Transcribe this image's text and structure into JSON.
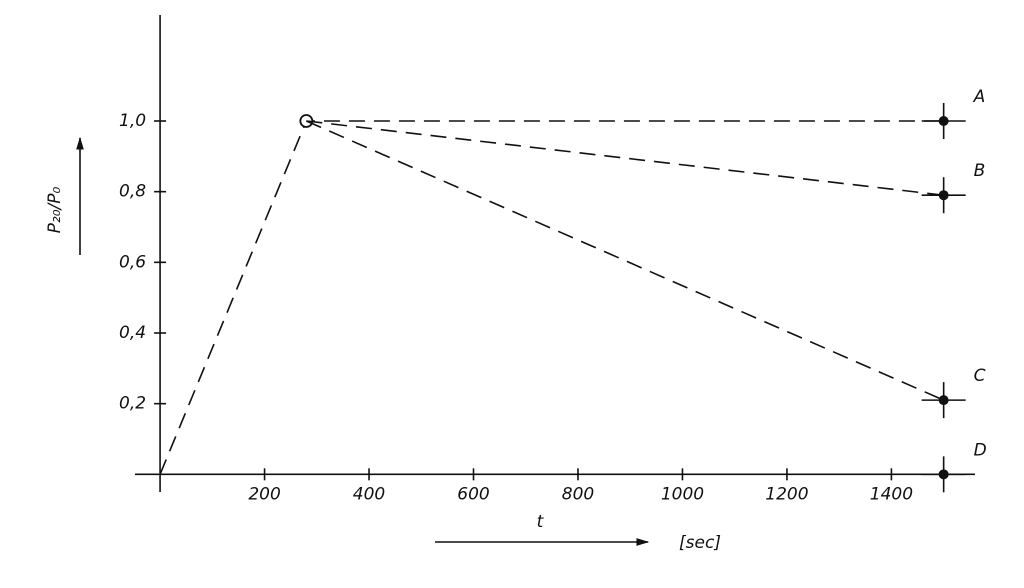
{
  "chart_data": {
    "type": "line",
    "ylabel": "P₂₀/P₀",
    "xlabel": "t",
    "xunit": "[sec]",
    "xlim": [
      -48,
      1560
    ],
    "ylim": [
      -0.05,
      1.3
    ],
    "xticks": [
      200,
      400,
      600,
      800,
      1000,
      1200,
      1400
    ],
    "yticks": [
      {
        "value": 0.2,
        "label": "0,2"
      },
      {
        "value": 0.4,
        "label": "0,4"
      },
      {
        "value": 0.6,
        "label": "0,6"
      },
      {
        "value": 0.8,
        "label": "0,8"
      },
      {
        "value": 1.0,
        "label": "1,0"
      }
    ],
    "grid": false,
    "series": [
      {
        "name": "A",
        "color": "#111111",
        "x": [
          0,
          280,
          1500
        ],
        "values": [
          0,
          1.0,
          1.0
        ]
      },
      {
        "name": "B",
        "color": "#111111",
        "x": [
          280,
          1500
        ],
        "values": [
          1.0,
          0.79
        ]
      },
      {
        "name": "C",
        "color": "#111111",
        "x": [
          280,
          1500
        ],
        "values": [
          1.0,
          0.21
        ]
      },
      {
        "name": "D",
        "color": "#111111",
        "x": [
          1500
        ],
        "values": [
          0
        ]
      }
    ]
  }
}
